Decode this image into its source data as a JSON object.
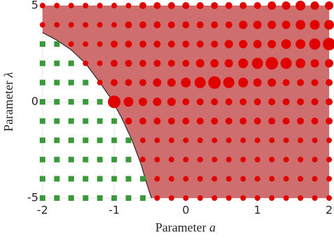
{
  "chart_data": {
    "type": "scatter",
    "xlabel_text": "Parameter",
    "xlabel_var": "a",
    "ylabel_text": "Parameter",
    "ylabel_var": "λ",
    "xlim": [
      -2,
      2
    ],
    "ylim": [
      -5,
      5
    ],
    "xticks": [
      -2,
      -1,
      0,
      1,
      2
    ],
    "yticks": [
      -5,
      0,
      5
    ],
    "grid": true,
    "region_color": "#cc6666",
    "boundary_color": "#333333",
    "boundary": {
      "x": [
        -2,
        -1.8,
        -1.6,
        -1.4,
        -1.2,
        -1.05,
        -0.9,
        -0.75,
        -0.62,
        -0.55,
        -0.48
      ],
      "y": [
        3.6,
        3.2,
        2.7,
        2.0,
        1.0,
        0.2,
        -0.8,
        -2.0,
        -3.3,
        -4.2,
        -5
      ]
    },
    "circle_color": "#e00000",
    "square_color": "#3a9a3a",
    "circles": [
      {
        "y": 5,
        "x": [
          -2,
          -1.8,
          -1.6,
          -1.4,
          -1.2,
          -1,
          -0.8,
          -0.6,
          -0.4,
          -0.2,
          0,
          0.2,
          0.4,
          0.6,
          0.8,
          1,
          1.2,
          1.4,
          1.6,
          1.8,
          2
        ],
        "size": [
          4,
          4,
          4,
          4,
          4,
          4,
          4,
          5,
          5,
          5,
          5,
          5,
          5,
          5,
          5,
          5,
          6,
          6,
          7,
          6,
          6
        ]
      },
      {
        "y": 4,
        "x": [
          -2,
          -1.8,
          -1.6,
          -1.4,
          -1.2,
          -1,
          -0.8,
          -0.6,
          -0.4,
          -0.2,
          0,
          0.2,
          0.4,
          0.6,
          0.8,
          1,
          1.2,
          1.4,
          1.6,
          1.8,
          2
        ],
        "size": [
          4,
          4,
          4,
          4,
          4,
          4,
          5,
          5,
          5,
          5,
          5,
          5,
          5,
          5,
          6,
          6,
          6,
          6,
          7,
          7,
          7
        ]
      },
      {
        "y": 3,
        "x": [
          -1.6,
          -1.4,
          -1.2,
          -1,
          -0.8,
          -0.6,
          -0.4,
          -0.2,
          0,
          0.2,
          0.4,
          0.6,
          0.8,
          1,
          1.2,
          1.4,
          1.6,
          1.8,
          2
        ],
        "size": [
          4,
          4,
          4,
          5,
          5,
          5,
          5,
          5,
          5,
          5,
          5,
          6,
          6,
          6,
          6,
          7,
          7,
          8,
          9
        ]
      },
      {
        "y": 2,
        "x": [
          -1.4,
          -1.2,
          -1,
          -0.8,
          -0.6,
          -0.4,
          -0.2,
          0,
          0.2,
          0.4,
          0.6,
          0.8,
          1,
          1.2,
          1.4,
          1.6,
          1.8,
          2
        ],
        "size": [
          4,
          4,
          5,
          5,
          5,
          5,
          5,
          5,
          6,
          6,
          6,
          7,
          8,
          9,
          8,
          7,
          6,
          6
        ]
      },
      {
        "y": 1,
        "x": [
          -1.2,
          -1,
          -0.8,
          -0.6,
          -0.4,
          -0.2,
          0,
          0.2,
          0.4,
          0.6,
          0.8,
          1,
          1.2,
          1.4,
          1.6,
          1.8,
          2
        ],
        "size": [
          4,
          5,
          5,
          5,
          6,
          6,
          7,
          8,
          9,
          8,
          7,
          6,
          6,
          5,
          5,
          5,
          5
        ]
      },
      {
        "y": 0,
        "x": [
          -1,
          -0.8,
          -0.6,
          -0.4,
          -0.2,
          0,
          0.2,
          0.4,
          0.6,
          0.8,
          1,
          1.2,
          1.4,
          1.6,
          1.8,
          2
        ],
        "size": [
          9,
          7,
          6,
          6,
          6,
          5,
          5,
          5,
          5,
          5,
          5,
          5,
          5,
          5,
          5,
          5
        ]
      },
      {
        "y": -1,
        "x": [
          -0.8,
          -0.6,
          -0.4,
          -0.2,
          0,
          0.2,
          0.4,
          0.6,
          0.8,
          1,
          1.2,
          1.4,
          1.6,
          1.8,
          2
        ],
        "size": [
          5,
          5,
          5,
          5,
          5,
          5,
          5,
          5,
          5,
          5,
          5,
          5,
          5,
          5,
          5
        ]
      },
      {
        "y": -2,
        "x": [
          -0.6,
          -0.4,
          -0.2,
          0,
          0.2,
          0.4,
          0.6,
          0.8,
          1,
          1.2,
          1.4,
          1.6,
          1.8,
          2
        ],
        "size": [
          4,
          4,
          4,
          4,
          4,
          4,
          4,
          4,
          4,
          4,
          4,
          4,
          4,
          4
        ]
      },
      {
        "y": -3,
        "x": [
          -0.6,
          -0.4,
          -0.2,
          0,
          0.2,
          0.4,
          0.6,
          0.8,
          1,
          1.2,
          1.4,
          1.6,
          1.8,
          2
        ],
        "size": [
          4,
          4,
          4,
          4,
          4,
          4,
          4,
          4,
          4,
          4,
          4,
          4,
          4,
          4
        ]
      },
      {
        "y": -4,
        "x": [
          -0.4,
          -0.2,
          0,
          0.2,
          0.4,
          0.6,
          0.8,
          1,
          1.2,
          1.4,
          1.6,
          1.8,
          2
        ],
        "size": [
          4,
          4,
          4,
          4,
          4,
          4,
          4,
          4,
          4,
          4,
          4,
          4,
          4
        ]
      },
      {
        "y": -5,
        "x": [
          -0.4,
          -0.2,
          0,
          0.2,
          0.4,
          0.6,
          0.8,
          1,
          1.2,
          1.4,
          1.6,
          1.8,
          2
        ],
        "size": [
          4,
          4,
          4,
          4,
          4,
          4,
          4,
          4,
          4,
          4,
          4,
          4,
          4
        ]
      }
    ],
    "squares": [
      {
        "y": 3,
        "x": [
          -2,
          -1.8
        ]
      },
      {
        "y": 2,
        "x": [
          -2,
          -1.8,
          -1.6
        ]
      },
      {
        "y": 1,
        "x": [
          -2,
          -1.8,
          -1.6,
          -1.4
        ]
      },
      {
        "y": 0,
        "x": [
          -2,
          -1.8,
          -1.6,
          -1.4,
          -1.2
        ]
      },
      {
        "y": -1,
        "x": [
          -2,
          -1.8,
          -1.6,
          -1.4,
          -1.2,
          -1
        ]
      },
      {
        "y": -2,
        "x": [
          -2,
          -1.8,
          -1.6,
          -1.4,
          -1.2,
          -1,
          -0.8
        ]
      },
      {
        "y": -3,
        "x": [
          -2,
          -1.8,
          -1.6,
          -1.4,
          -1.2,
          -1,
          -0.8
        ]
      },
      {
        "y": -4,
        "x": [
          -2,
          -1.8,
          -1.6,
          -1.4,
          -1.2,
          -1,
          -0.8,
          -0.6
        ]
      },
      {
        "y": -5,
        "x": [
          -2,
          -1.8,
          -1.6,
          -1.4,
          -1.2,
          -1,
          -0.8,
          -0.6
        ]
      }
    ]
  }
}
